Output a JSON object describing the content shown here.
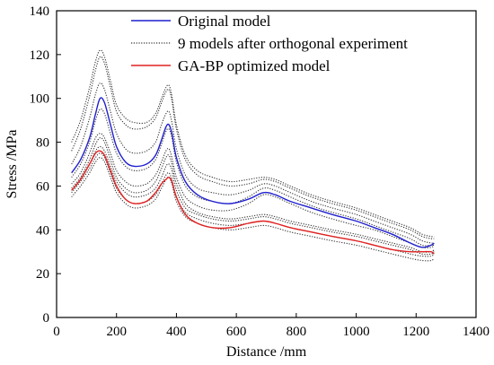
{
  "chart_data": {
    "type": "line",
    "xlabel": "Distance /mm",
    "ylabel": "Stress /MPa",
    "xlim": [
      0,
      1400
    ],
    "ylim": [
      0,
      140
    ],
    "xticks": [
      0,
      200,
      400,
      600,
      800,
      1000,
      1200,
      1400
    ],
    "yticks": [
      0,
      20,
      40,
      60,
      80,
      100,
      120,
      140
    ],
    "grid": false,
    "legend_position": "top-right",
    "series": [
      {
        "name": "Original model",
        "style": "solid",
        "color": "#1f1fcf",
        "x": [
          50,
          80,
          110,
          130,
          145,
          160,
          180,
          200,
          230,
          260,
          300,
          330,
          350,
          365,
          375,
          385,
          400,
          430,
          470,
          520,
          580,
          640,
          690,
          730,
          780,
          850,
          920,
          1000,
          1060,
          1120,
          1180,
          1220,
          1250,
          1260
        ],
        "y": [
          66,
          72,
          82,
          93,
          100,
          98,
          88,
          78,
          71,
          69,
          70,
          74,
          81,
          87,
          88,
          84,
          73,
          62,
          56,
          53,
          52,
          54,
          57,
          56,
          53,
          50,
          47,
          44,
          41,
          38,
          34,
          32,
          33,
          34
        ]
      },
      {
        "name": "9 models after  orthogonal experiment",
        "style": "dotted",
        "color": "#333333",
        "lines": [
          {
            "x": [
              50,
              80,
              110,
              130,
              145,
              160,
              180,
              200,
              230,
              260,
              300,
              330,
              350,
              365,
              375,
              385,
              400,
              430,
              470,
              520,
              580,
              640,
              690,
              730,
              780,
              850,
              920,
              1000,
              1060,
              1120,
              1180,
              1220,
              1250,
              1260
            ],
            "y": [
              80,
              90,
              105,
              117,
              122,
              119,
              108,
              97,
              91,
              89,
              89,
              93,
              100,
              105,
              106,
              101,
              88,
              74,
              67,
              64,
              62,
              63,
              64,
              63,
              60,
              56,
              53,
              50,
              47,
              44,
              41,
              38,
              37,
              37
            ]
          },
          {
            "x": [
              50,
              80,
              110,
              130,
              145,
              160,
              180,
              200,
              230,
              260,
              300,
              330,
              350,
              365,
              375,
              385,
              400,
              430,
              470,
              520,
              580,
              640,
              690,
              730,
              780,
              850,
              920,
              1000,
              1060,
              1120,
              1180,
              1220,
              1250,
              1260
            ],
            "y": [
              76,
              86,
              101,
              113,
              119,
              116,
              105,
              94,
              88,
              86,
              87,
              91,
              98,
              103,
              104,
              99,
              86,
              72,
              65,
              62,
              60,
              61,
              63,
              62,
              59,
              55,
              52,
              49,
              46,
              43,
              40,
              37,
              36,
              36
            ]
          },
          {
            "x": [
              50,
              80,
              110,
              130,
              145,
              160,
              180,
              200,
              230,
              260,
              300,
              330,
              350,
              365,
              375,
              385,
              400,
              430,
              470,
              520,
              580,
              640,
              690,
              730,
              780,
              850,
              920,
              1000,
              1060,
              1120,
              1180,
              1220,
              1250,
              1260
            ],
            "y": [
              70,
              78,
              91,
              102,
              107,
              104,
              94,
              84,
              77,
              75,
              76,
              80,
              88,
              93,
              94,
              89,
              77,
              65,
              59,
              57,
              56,
              58,
              61,
              60,
              57,
              53,
              50,
              47,
              44,
              41,
              38,
              35,
              34,
              34
            ]
          },
          {
            "x": [
              50,
              80,
              110,
              130,
              145,
              160,
              180,
              200,
              230,
              260,
              300,
              330,
              350,
              365,
              375,
              385,
              400,
              430,
              470,
              520,
              580,
              640,
              690,
              730,
              780,
              850,
              920,
              1000,
              1060,
              1120,
              1180,
              1220,
              1250,
              1260
            ],
            "y": [
              64,
              70,
              80,
              90,
              95,
              93,
              84,
              75,
              69,
              67,
              68,
              72,
              79,
              85,
              86,
              82,
              71,
              60,
              55,
              53,
              52,
              55,
              59,
              58,
              55,
              51,
              48,
              45,
              42,
              39,
              36,
              33,
              33,
              33
            ]
          },
          {
            "x": [
              50,
              80,
              110,
              130,
              145,
              160,
              180,
              200,
              230,
              260,
              300,
              330,
              350,
              365,
              375,
              385,
              400,
              430,
              470,
              520,
              580,
              640,
              690,
              730,
              780,
              850,
              920,
              1000,
              1060,
              1120,
              1180,
              1220,
              1250,
              1260
            ],
            "y": [
              61,
              66,
              75,
              82,
              84,
              82,
              75,
              67,
              62,
              60,
              61,
              65,
              71,
              76,
              77,
              73,
              64,
              55,
              51,
              49,
              49,
              52,
              56,
              55,
              52,
              48,
              45,
              42,
              40,
              37,
              34,
              32,
              32,
              33
            ]
          },
          {
            "x": [
              50,
              80,
              110,
              130,
              145,
              160,
              180,
              200,
              230,
              260,
              300,
              330,
              350,
              365,
              375,
              385,
              400,
              430,
              470,
              520,
              580,
              640,
              690,
              730,
              780,
              850,
              920,
              1000,
              1060,
              1120,
              1180,
              1220,
              1250,
              1260
            ],
            "y": [
              59,
              64,
              72,
              79,
              82,
              80,
              72,
              64,
              59,
              57,
              58,
              62,
              68,
              73,
              74,
              70,
              61,
              52,
              48,
              46,
              45,
              46,
              47,
              46,
              44,
              42,
              40,
              38,
              36,
              34,
              32,
              30,
              30,
              31
            ]
          },
          {
            "x": [
              50,
              80,
              110,
              130,
              145,
              160,
              180,
              200,
              230,
              260,
              300,
              330,
              350,
              365,
              375,
              385,
              400,
              430,
              470,
              520,
              580,
              640,
              690,
              730,
              780,
              850,
              920,
              1000,
              1060,
              1120,
              1180,
              1220,
              1250,
              1260
            ],
            "y": [
              58,
              63,
              70,
              76,
              78,
              76,
              69,
              62,
              57,
              55,
              56,
              59,
              64,
              69,
              70,
              67,
              58,
              50,
              47,
              45,
              44,
              45,
              46,
              45,
              43,
              41,
              39,
              37,
              35,
              33,
              31,
              29,
              29,
              30
            ]
          },
          {
            "x": [
              50,
              80,
              110,
              130,
              145,
              160,
              180,
              200,
              230,
              260,
              300,
              330,
              350,
              365,
              375,
              385,
              400,
              430,
              470,
              520,
              580,
              640,
              690,
              730,
              780,
              850,
              920,
              1000,
              1060,
              1120,
              1180,
              1220,
              1250,
              1260
            ],
            "y": [
              57,
              62,
              68,
              73,
              75,
              73,
              66,
              59,
              54,
              52,
              53,
              56,
              61,
              65,
              66,
              63,
              55,
              48,
              45,
              43,
              42,
              43,
              44,
              43,
              41,
              39,
              37,
              35,
              33,
              31,
              29,
              28,
              28,
              29
            ]
          },
          {
            "x": [
              50,
              80,
              110,
              130,
              145,
              160,
              180,
              200,
              230,
              260,
              300,
              330,
              350,
              365,
              375,
              385,
              400,
              430,
              470,
              520,
              580,
              640,
              690,
              730,
              780,
              850,
              920,
              1000,
              1060,
              1120,
              1180,
              1220,
              1250,
              1260
            ],
            "y": [
              55,
              60,
              66,
              71,
              73,
              71,
              64,
              57,
              52,
              50,
              51,
              54,
              59,
              63,
              64,
              61,
              53,
              46,
              43,
              41,
              40,
              41,
              42,
              41,
              39,
              37,
              35,
              33,
              31,
              29,
              27,
              26,
              26,
              27
            ]
          }
        ]
      },
      {
        "name": "GA-BP optimized model",
        "style": "solid",
        "color": "#e02020",
        "x": [
          50,
          80,
          110,
          130,
          145,
          160,
          180,
          200,
          230,
          260,
          300,
          330,
          350,
          365,
          375,
          385,
          400,
          430,
          470,
          520,
          580,
          640,
          690,
          730,
          780,
          850,
          920,
          1000,
          1060,
          1120,
          1180,
          1220,
          1250,
          1260
        ],
        "y": [
          58,
          63,
          70,
          75,
          76,
          74,
          67,
          60,
          54,
          52,
          53,
          57,
          61,
          63,
          64,
          62,
          55,
          47,
          43,
          41,
          41,
          43,
          44,
          43,
          41,
          39,
          37,
          35,
          33,
          31,
          30,
          30,
          30,
          29
        ]
      }
    ]
  }
}
